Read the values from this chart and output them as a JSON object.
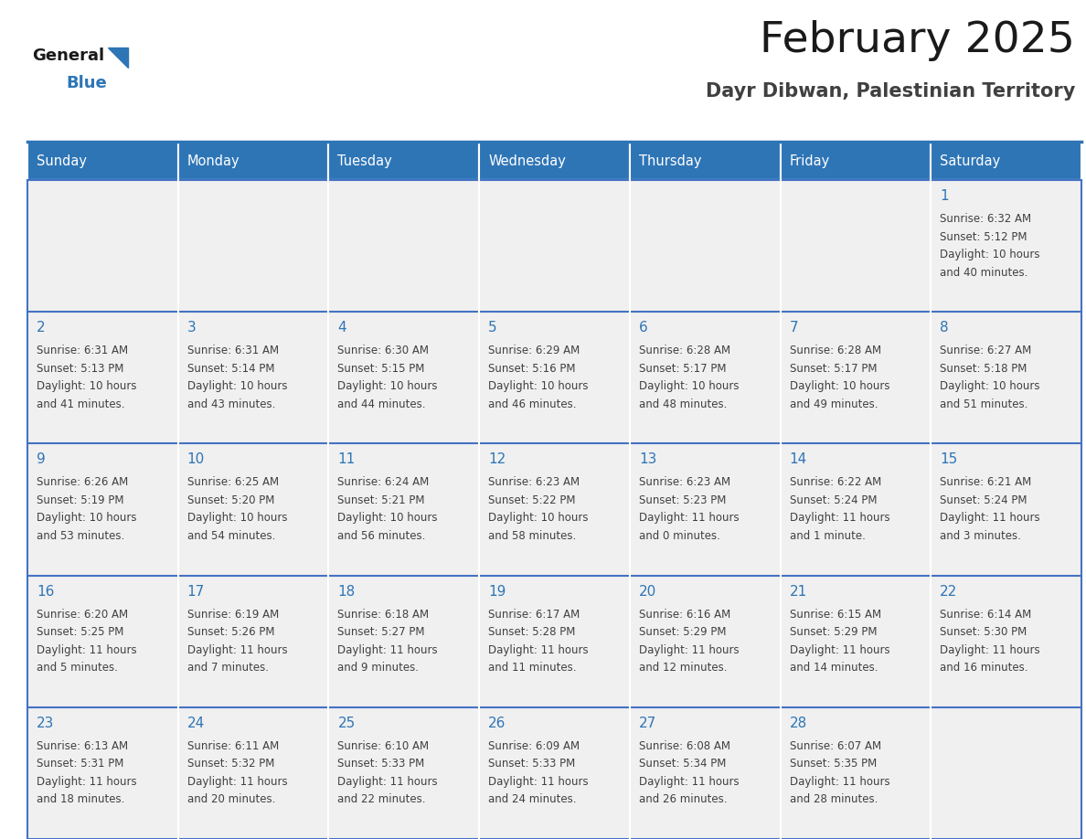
{
  "title": "February 2025",
  "subtitle": "Dayr Dibwan, Palestinian Territory",
  "days_of_week": [
    "Sunday",
    "Monday",
    "Tuesday",
    "Wednesday",
    "Thursday",
    "Friday",
    "Saturday"
  ],
  "header_bg": "#2E75B6",
  "header_text": "#FFFFFF",
  "cell_bg_light": "#F0F0F0",
  "cell_bg_white": "#FFFFFF",
  "cell_border_color": "#4472C4",
  "day_num_color": "#2E75B6",
  "info_color": "#404040",
  "title_color": "#1a1a1a",
  "subtitle_color": "#404040",
  "logo_general_color": "#1a1a1a",
  "logo_blue_color": "#2E75B6",
  "weeks": [
    [
      {
        "day": null,
        "info": ""
      },
      {
        "day": null,
        "info": ""
      },
      {
        "day": null,
        "info": ""
      },
      {
        "day": null,
        "info": ""
      },
      {
        "day": null,
        "info": ""
      },
      {
        "day": null,
        "info": ""
      },
      {
        "day": 1,
        "info": "Sunrise: 6:32 AM\nSunset: 5:12 PM\nDaylight: 10 hours\nand 40 minutes."
      }
    ],
    [
      {
        "day": 2,
        "info": "Sunrise: 6:31 AM\nSunset: 5:13 PM\nDaylight: 10 hours\nand 41 minutes."
      },
      {
        "day": 3,
        "info": "Sunrise: 6:31 AM\nSunset: 5:14 PM\nDaylight: 10 hours\nand 43 minutes."
      },
      {
        "day": 4,
        "info": "Sunrise: 6:30 AM\nSunset: 5:15 PM\nDaylight: 10 hours\nand 44 minutes."
      },
      {
        "day": 5,
        "info": "Sunrise: 6:29 AM\nSunset: 5:16 PM\nDaylight: 10 hours\nand 46 minutes."
      },
      {
        "day": 6,
        "info": "Sunrise: 6:28 AM\nSunset: 5:17 PM\nDaylight: 10 hours\nand 48 minutes."
      },
      {
        "day": 7,
        "info": "Sunrise: 6:28 AM\nSunset: 5:17 PM\nDaylight: 10 hours\nand 49 minutes."
      },
      {
        "day": 8,
        "info": "Sunrise: 6:27 AM\nSunset: 5:18 PM\nDaylight: 10 hours\nand 51 minutes."
      }
    ],
    [
      {
        "day": 9,
        "info": "Sunrise: 6:26 AM\nSunset: 5:19 PM\nDaylight: 10 hours\nand 53 minutes."
      },
      {
        "day": 10,
        "info": "Sunrise: 6:25 AM\nSunset: 5:20 PM\nDaylight: 10 hours\nand 54 minutes."
      },
      {
        "day": 11,
        "info": "Sunrise: 6:24 AM\nSunset: 5:21 PM\nDaylight: 10 hours\nand 56 minutes."
      },
      {
        "day": 12,
        "info": "Sunrise: 6:23 AM\nSunset: 5:22 PM\nDaylight: 10 hours\nand 58 minutes."
      },
      {
        "day": 13,
        "info": "Sunrise: 6:23 AM\nSunset: 5:23 PM\nDaylight: 11 hours\nand 0 minutes."
      },
      {
        "day": 14,
        "info": "Sunrise: 6:22 AM\nSunset: 5:24 PM\nDaylight: 11 hours\nand 1 minute."
      },
      {
        "day": 15,
        "info": "Sunrise: 6:21 AM\nSunset: 5:24 PM\nDaylight: 11 hours\nand 3 minutes."
      }
    ],
    [
      {
        "day": 16,
        "info": "Sunrise: 6:20 AM\nSunset: 5:25 PM\nDaylight: 11 hours\nand 5 minutes."
      },
      {
        "day": 17,
        "info": "Sunrise: 6:19 AM\nSunset: 5:26 PM\nDaylight: 11 hours\nand 7 minutes."
      },
      {
        "day": 18,
        "info": "Sunrise: 6:18 AM\nSunset: 5:27 PM\nDaylight: 11 hours\nand 9 minutes."
      },
      {
        "day": 19,
        "info": "Sunrise: 6:17 AM\nSunset: 5:28 PM\nDaylight: 11 hours\nand 11 minutes."
      },
      {
        "day": 20,
        "info": "Sunrise: 6:16 AM\nSunset: 5:29 PM\nDaylight: 11 hours\nand 12 minutes."
      },
      {
        "day": 21,
        "info": "Sunrise: 6:15 AM\nSunset: 5:29 PM\nDaylight: 11 hours\nand 14 minutes."
      },
      {
        "day": 22,
        "info": "Sunrise: 6:14 AM\nSunset: 5:30 PM\nDaylight: 11 hours\nand 16 minutes."
      }
    ],
    [
      {
        "day": 23,
        "info": "Sunrise: 6:13 AM\nSunset: 5:31 PM\nDaylight: 11 hours\nand 18 minutes."
      },
      {
        "day": 24,
        "info": "Sunrise: 6:11 AM\nSunset: 5:32 PM\nDaylight: 11 hours\nand 20 minutes."
      },
      {
        "day": 25,
        "info": "Sunrise: 6:10 AM\nSunset: 5:33 PM\nDaylight: 11 hours\nand 22 minutes."
      },
      {
        "day": 26,
        "info": "Sunrise: 6:09 AM\nSunset: 5:33 PM\nDaylight: 11 hours\nand 24 minutes."
      },
      {
        "day": 27,
        "info": "Sunrise: 6:08 AM\nSunset: 5:34 PM\nDaylight: 11 hours\nand 26 minutes."
      },
      {
        "day": 28,
        "info": "Sunrise: 6:07 AM\nSunset: 5:35 PM\nDaylight: 11 hours\nand 28 minutes."
      },
      {
        "day": null,
        "info": ""
      }
    ]
  ],
  "fig_width": 11.88,
  "fig_height": 9.18,
  "dpi": 100
}
